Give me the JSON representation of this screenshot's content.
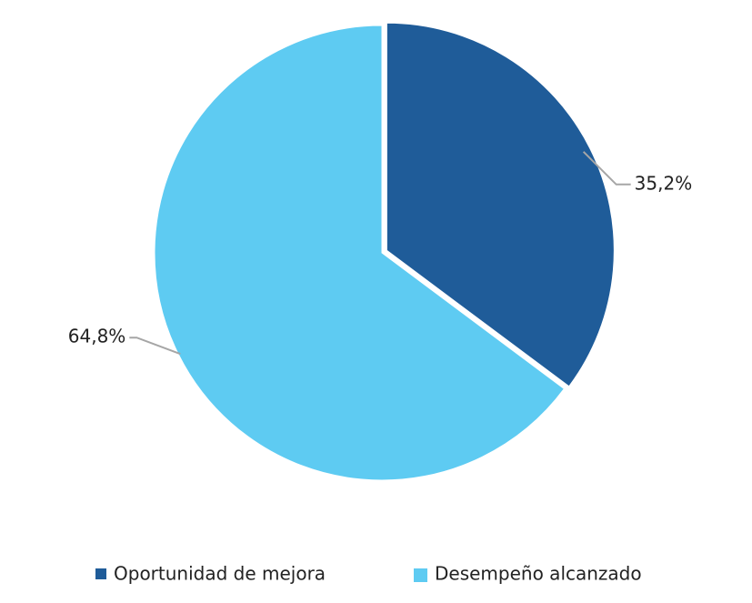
{
  "chart_data": {
    "type": "pie",
    "categories": [
      "Oportunidad de mejora",
      "Desempeño alcanzado"
    ],
    "values": [
      35.2,
      64.8
    ],
    "value_labels": [
      "35,2%",
      "64,8%"
    ],
    "colors": [
      "#1f5c99",
      "#5ecbf2"
    ],
    "legend": "bottom"
  }
}
